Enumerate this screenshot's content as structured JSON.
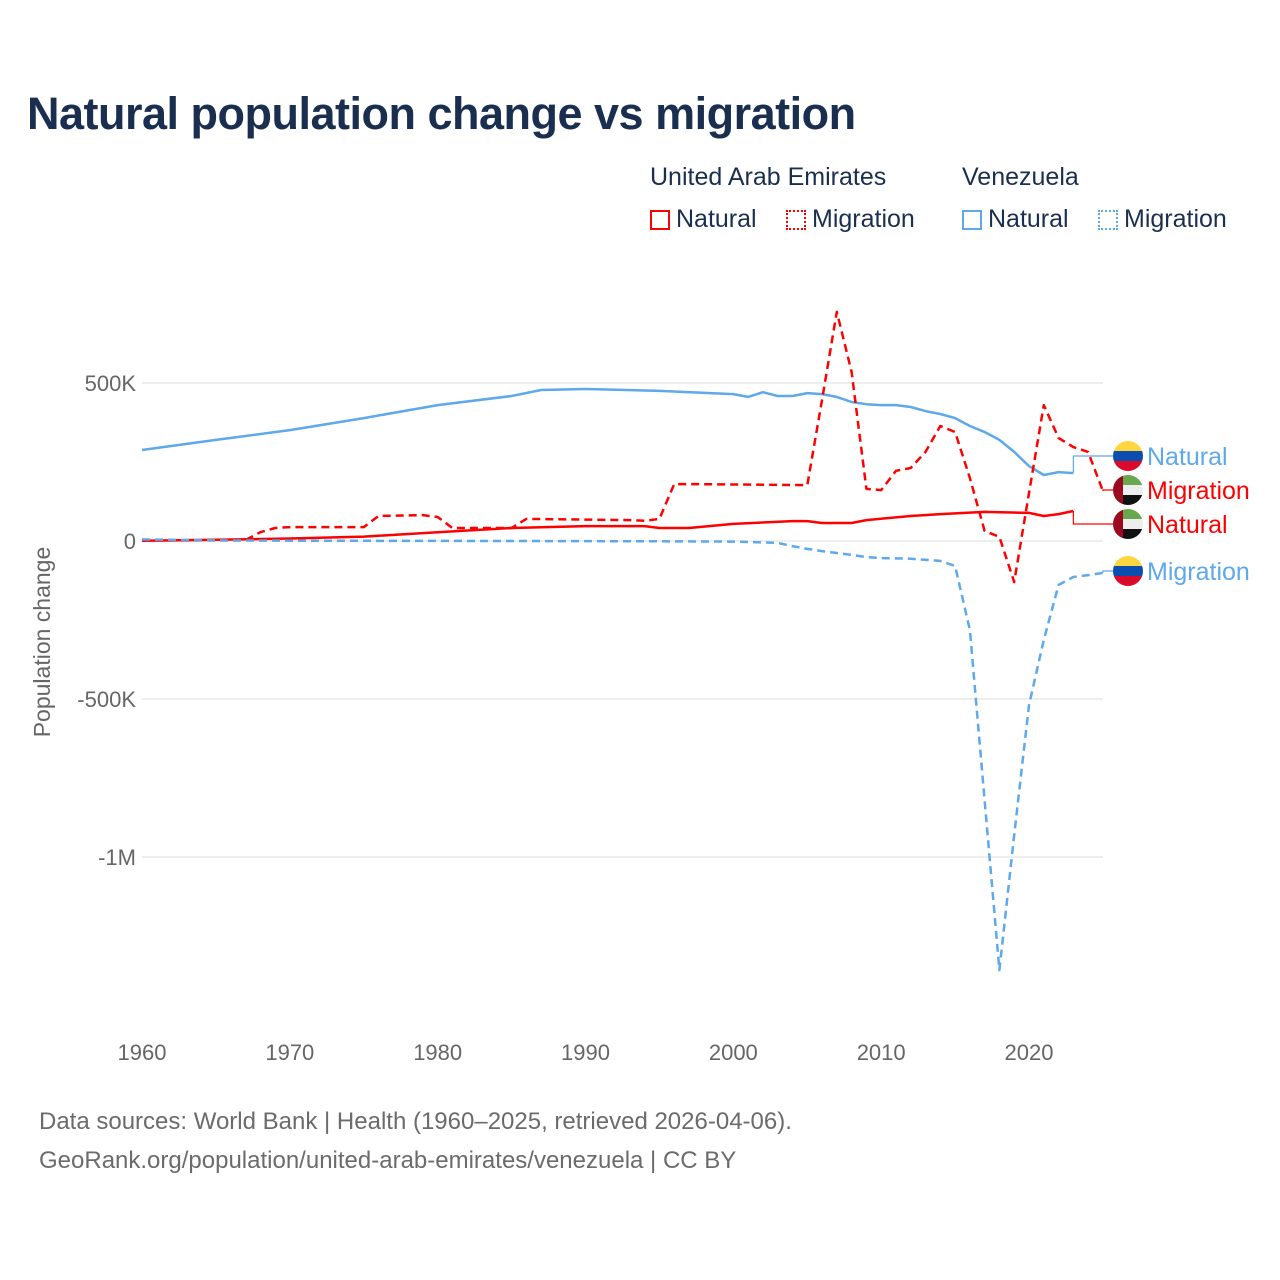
{
  "title": "Natural population change vs migration",
  "legend": {
    "groups": [
      {
        "name": "United Arab Emirates",
        "items": [
          "Natural",
          "Migration"
        ],
        "color": "#ff0000"
      },
      {
        "name": "Venezuela",
        "items": [
          "Natural",
          "Migration"
        ],
        "color": "#5ea8ec"
      }
    ]
  },
  "footer": {
    "line1": "Data sources: World Bank | Health (1960–2025, retrieved 2026-04-06).",
    "line2": "GeoRank.org/population/united-arab-emirates/venezuela | CC BY"
  },
  "chart_data": {
    "type": "line",
    "title": "Natural population change vs migration",
    "xlabel": "",
    "ylabel": "Population change",
    "xlim": [
      1960,
      2025
    ],
    "ylim": [
      -1400000,
      750000
    ],
    "x_ticks": [
      1960,
      1970,
      1980,
      1990,
      2000,
      2010,
      2020
    ],
    "y_ticks": [
      {
        "v": 500000,
        "label": "500K"
      },
      {
        "v": 0,
        "label": "0"
      },
      {
        "v": -500000,
        "label": "-500K"
      },
      {
        "v": -1000000,
        "label": "-1M"
      }
    ],
    "grid": true,
    "legend_position": "top-right",
    "series": [
      {
        "name": "Venezuela Natural",
        "label": "Natural",
        "country": "Venezuela",
        "color": "#5ea8ec",
        "dash": false,
        "points": [
          [
            1960,
            288000
          ],
          [
            1965,
            320000
          ],
          [
            1970,
            351000
          ],
          [
            1975,
            389000
          ],
          [
            1980,
            430000
          ],
          [
            1985,
            459000
          ],
          [
            1987,
            478000
          ],
          [
            1990,
            481000
          ],
          [
            1995,
            475000
          ],
          [
            2000,
            465000
          ],
          [
            2001,
            456000
          ],
          [
            2002,
            471000
          ],
          [
            2003,
            459000
          ],
          [
            2004,
            459000
          ],
          [
            2005,
            468000
          ],
          [
            2006,
            465000
          ],
          [
            2007,
            456000
          ],
          [
            2008,
            440000
          ],
          [
            2009,
            433000
          ],
          [
            2010,
            430000
          ],
          [
            2011,
            430000
          ],
          [
            2012,
            424000
          ],
          [
            2013,
            411000
          ],
          [
            2014,
            402000
          ],
          [
            2015,
            389000
          ],
          [
            2016,
            364000
          ],
          [
            2017,
            345000
          ],
          [
            2018,
            320000
          ],
          [
            2019,
            282000
          ],
          [
            2020,
            237000
          ],
          [
            2021,
            209000
          ],
          [
            2022,
            218000
          ],
          [
            2023,
            215000
          ]
        ]
      },
      {
        "name": "United Arab Emirates Migration",
        "label": "Migration",
        "country": "United Arab Emirates",
        "color": "#ff0000",
        "dash": true,
        "points": [
          [
            1960,
            2000
          ],
          [
            1966,
            2000
          ],
          [
            1967,
            3000
          ],
          [
            1968,
            28000
          ],
          [
            1969,
            41000
          ],
          [
            1970,
            44000
          ],
          [
            1975,
            44000
          ],
          [
            1976,
            79000
          ],
          [
            1979,
            82000
          ],
          [
            1980,
            76000
          ],
          [
            1981,
            41000
          ],
          [
            1985,
            41000
          ],
          [
            1986,
            70000
          ],
          [
            1993,
            66000
          ],
          [
            1994,
            64000
          ],
          [
            1995,
            70000
          ],
          [
            1996,
            180000
          ],
          [
            1997,
            180000
          ],
          [
            2005,
            177000
          ],
          [
            2006,
            446000
          ],
          [
            2007,
            725000
          ],
          [
            2008,
            535000
          ],
          [
            2009,
            165000
          ],
          [
            2010,
            161000
          ],
          [
            2011,
            222000
          ],
          [
            2012,
            231000
          ],
          [
            2013,
            282000
          ],
          [
            2014,
            364000
          ],
          [
            2015,
            345000
          ],
          [
            2016,
            199000
          ],
          [
            2017,
            32000
          ],
          [
            2018,
            13000
          ],
          [
            2019,
            -130000
          ],
          [
            2020,
            152000
          ],
          [
            2021,
            430000
          ],
          [
            2022,
            326000
          ],
          [
            2023,
            297000
          ],
          [
            2024,
            282000
          ],
          [
            2025,
            158000
          ]
        ]
      },
      {
        "name": "United Arab Emirates Natural",
        "label": "Natural",
        "country": "United Arab Emirates",
        "color": "#ff0000",
        "dash": false,
        "points": [
          [
            1960,
            1000
          ],
          [
            1965,
            4000
          ],
          [
            1970,
            8000
          ],
          [
            1975,
            14000
          ],
          [
            1980,
            28000
          ],
          [
            1985,
            41000
          ],
          [
            1990,
            47000
          ],
          [
            1994,
            47000
          ],
          [
            1995,
            41000
          ],
          [
            1997,
            41000
          ],
          [
            2000,
            54000
          ],
          [
            2004,
            63000
          ],
          [
            2005,
            63000
          ],
          [
            2006,
            57000
          ],
          [
            2008,
            57000
          ],
          [
            2009,
            66000
          ],
          [
            2012,
            79000
          ],
          [
            2014,
            85000
          ],
          [
            2017,
            92000
          ],
          [
            2020,
            89000
          ],
          [
            2021,
            79000
          ],
          [
            2022,
            85000
          ],
          [
            2023,
            95000
          ]
        ]
      },
      {
        "name": "Venezuela Migration",
        "label": "Migration",
        "country": "Venezuela",
        "color": "#5ea8ec",
        "dash": true,
        "points": [
          [
            1960,
            5000
          ],
          [
            1965,
            2000
          ],
          [
            1970,
            1000
          ],
          [
            1985,
            0
          ],
          [
            1995,
            -1000
          ],
          [
            2000,
            -2000
          ],
          [
            2003,
            -6000
          ],
          [
            2004,
            -16000
          ],
          [
            2005,
            -25000
          ],
          [
            2006,
            -32000
          ],
          [
            2007,
            -38000
          ],
          [
            2008,
            -44000
          ],
          [
            2009,
            -51000
          ],
          [
            2010,
            -54000
          ],
          [
            2012,
            -56000
          ],
          [
            2014,
            -63000
          ],
          [
            2015,
            -79000
          ],
          [
            2016,
            -282000
          ],
          [
            2017,
            -820000
          ],
          [
            2018,
            -1358000
          ],
          [
            2019,
            -930000
          ],
          [
            2020,
            -519000
          ],
          [
            2021,
            -313000
          ],
          [
            2022,
            -139000
          ],
          [
            2023,
            -114000
          ],
          [
            2024,
            -108000
          ],
          [
            2025,
            -101000
          ]
        ]
      }
    ]
  }
}
